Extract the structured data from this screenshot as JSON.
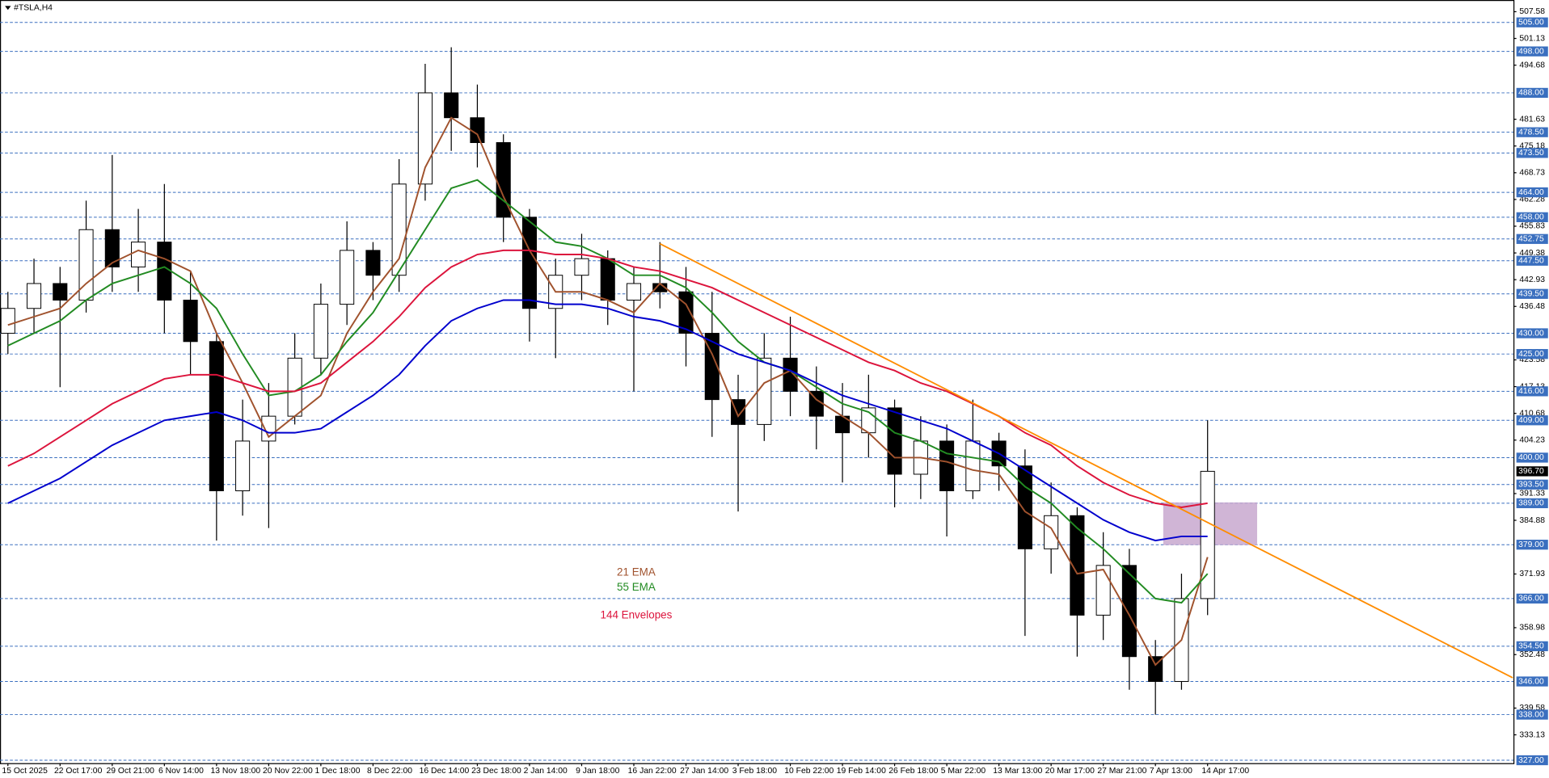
{
  "chart_data": {
    "type": "candlestick",
    "title": "#TSLA,H4",
    "categories": [
      "15 Oct 2025",
      null,
      "22 Oct 17:00",
      null,
      "29 Oct 21:00",
      null,
      "6 Nov 14:00",
      null,
      "13 Nov 18:00",
      null,
      "20 Nov 22:00",
      null,
      "1 Dec 18:00",
      null,
      "8 Dec 22:00",
      null,
      "16 Dec 14:00",
      null,
      "23 Dec 18:00",
      null,
      "2 Jan 14:00",
      null,
      "9 Jan 18:00",
      null,
      "16 Jan 22:00",
      null,
      "27 Jan 14:00",
      null,
      "3 Feb 18:00",
      null,
      "10 Feb 22:00",
      null,
      "19 Feb 14:00",
      null,
      "26 Feb 18:00",
      null,
      "5 Mar 22:00",
      null,
      "13 Mar 13:00",
      null,
      "20 Mar 17:00",
      null,
      "27 Mar 21:00",
      null,
      "7 Apr 13:00",
      null,
      "14 Apr 17:00"
    ],
    "open": [
      430,
      436,
      442,
      438,
      455,
      446,
      452,
      438,
      428,
      392,
      404,
      410,
      424,
      437,
      450,
      444,
      466,
      488,
      482,
      476,
      458,
      436,
      444,
      448,
      438,
      442,
      440,
      430,
      414,
      408,
      424,
      416,
      410,
      406,
      412,
      396,
      404,
      392,
      404,
      398,
      378,
      386,
      362,
      374,
      352,
      346,
      366
    ],
    "high": [
      440,
      448,
      446,
      462,
      473,
      460,
      466,
      445,
      430,
      414,
      418,
      430,
      442,
      457,
      452,
      472,
      495,
      499,
      490,
      478,
      460,
      448,
      454,
      450,
      446,
      452,
      446,
      440,
      420,
      430,
      434,
      422,
      418,
      420,
      414,
      410,
      408,
      414,
      406,
      402,
      394,
      388,
      382,
      378,
      356,
      372,
      409
    ],
    "low": [
      425,
      430,
      417,
      435,
      440,
      440,
      430,
      420,
      380,
      386,
      383,
      408,
      420,
      432,
      438,
      440,
      462,
      474,
      470,
      452,
      428,
      424,
      438,
      432,
      416,
      436,
      422,
      405,
      387,
      404,
      410,
      402,
      394,
      400,
      388,
      390,
      381,
      390,
      392,
      357,
      372,
      352,
      356,
      344,
      338,
      344,
      362
    ],
    "close": [
      436,
      442,
      438,
      455,
      446,
      452,
      438,
      428,
      392,
      404,
      410,
      424,
      437,
      450,
      444,
      466,
      488,
      482,
      476,
      458,
      436,
      444,
      448,
      438,
      442,
      440,
      430,
      414,
      408,
      424,
      416,
      410,
      406,
      412,
      396,
      404,
      392,
      404,
      398,
      378,
      386,
      362,
      374,
      352,
      346,
      366,
      396.7
    ],
    "series": [
      {
        "name": "21 EMA",
        "color": "#a0522d",
        "values": [
          432,
          434,
          436,
          442,
          447,
          450,
          448,
          445,
          430,
          418,
          405,
          410,
          415,
          430,
          440,
          448,
          470,
          482,
          478,
          463,
          450,
          440,
          440,
          438,
          435,
          442,
          437,
          425,
          410,
          418,
          421,
          414,
          410,
          406,
          400,
          400,
          399,
          397,
          396,
          387,
          383,
          372,
          373,
          362,
          350,
          356,
          376
        ]
      },
      {
        "name": "55 EMA",
        "color": "#228b22",
        "values": [
          427,
          430,
          433,
          438,
          442,
          444,
          446,
          442,
          436,
          425,
          415,
          416,
          420,
          428,
          435,
          445,
          455,
          465,
          467,
          462,
          457,
          452,
          451,
          448,
          444,
          444,
          441,
          435,
          428,
          423,
          421,
          417,
          413,
          411,
          406,
          404,
          401,
          400,
          399,
          393,
          389,
          383,
          378,
          372,
          366,
          365,
          372
        ]
      },
      {
        "name": "144 Envelopes",
        "color": "#dc143c",
        "values": [
          398,
          401,
          405,
          409,
          413,
          416,
          419,
          420,
          420,
          418,
          416,
          416,
          418,
          423,
          428,
          434,
          441,
          446,
          449,
          450,
          450,
          449,
          449,
          448,
          446,
          445,
          443,
          441,
          438,
          435,
          432,
          429,
          426,
          423,
          421,
          418,
          416,
          413,
          410,
          406,
          403,
          398,
          394,
          391,
          389,
          388,
          389
        ],
        "lower_color": "#0000cd",
        "lower": [
          389,
          392,
          395,
          399,
          403,
          406,
          409,
          410,
          411,
          409,
          406,
          406,
          407,
          411,
          415,
          420,
          427,
          433,
          436,
          438,
          438,
          437,
          437,
          436,
          434,
          433,
          431,
          428,
          425,
          423,
          421,
          418,
          415,
          413,
          411,
          409,
          407,
          404,
          401,
          397,
          393,
          389,
          385,
          382,
          380,
          381,
          381
        ]
      }
    ],
    "ylim": [
      326.3,
      510.4
    ],
    "yticks": [
      507.58,
      501.13,
      494.68,
      481.63,
      475.18,
      468.73,
      462.28,
      455.83,
      449.38,
      442.93,
      436.48,
      423.58,
      417.13,
      410.68,
      404.23,
      391.33,
      384.88,
      371.93,
      358.98,
      352.48,
      339.58,
      333.13
    ],
    "levels": [
      {
        "value": 505,
        "label": "505.00"
      },
      {
        "value": 498,
        "label": "498.00"
      },
      {
        "value": 488,
        "label": "488.00"
      },
      {
        "value": 478.5,
        "label": "478.50"
      },
      {
        "value": 473.5,
        "label": "473.50"
      },
      {
        "value": 464,
        "label": "464.00"
      },
      {
        "value": 458,
        "label": "458.00"
      },
      {
        "value": 452.75,
        "label": "452.75"
      },
      {
        "value": 447.5,
        "label": "447.50"
      },
      {
        "value": 439.5,
        "label": "439.50"
      },
      {
        "value": 430,
        "label": "430.00"
      },
      {
        "value": 425,
        "label": "425.00"
      },
      {
        "value": 416,
        "label": "416.00"
      },
      {
        "value": 409,
        "label": "409.00"
      },
      {
        "value": 400,
        "label": "400.00"
      },
      {
        "value": 393.5,
        "label": "393.50"
      },
      {
        "value": 389,
        "label": "389.00"
      },
      {
        "value": 379,
        "label": "379.00"
      },
      {
        "value": 366,
        "label": "366.00"
      },
      {
        "value": 354.5,
        "label": "354.50"
      },
      {
        "value": 346,
        "label": "346.00"
      },
      {
        "value": 338,
        "label": "338.00"
      },
      {
        "value": 327,
        "label": "327.00"
      }
    ],
    "level_color": "#3a6fbf",
    "last_price": {
      "value": 396.7,
      "label": "396.70"
    },
    "trendline": {
      "color": "#ff8c00",
      "x": [
        25.0,
        57.7
      ],
      "values": [
        451.6,
        346.9
      ]
    },
    "zone": {
      "color": "#c8a8cf",
      "x": [
        44.3,
        47.9
      ],
      "y": [
        378.9,
        389.2
      ]
    },
    "up_color": "#ffffff",
    "down_color": "#000000",
    "grid": false
  }
}
